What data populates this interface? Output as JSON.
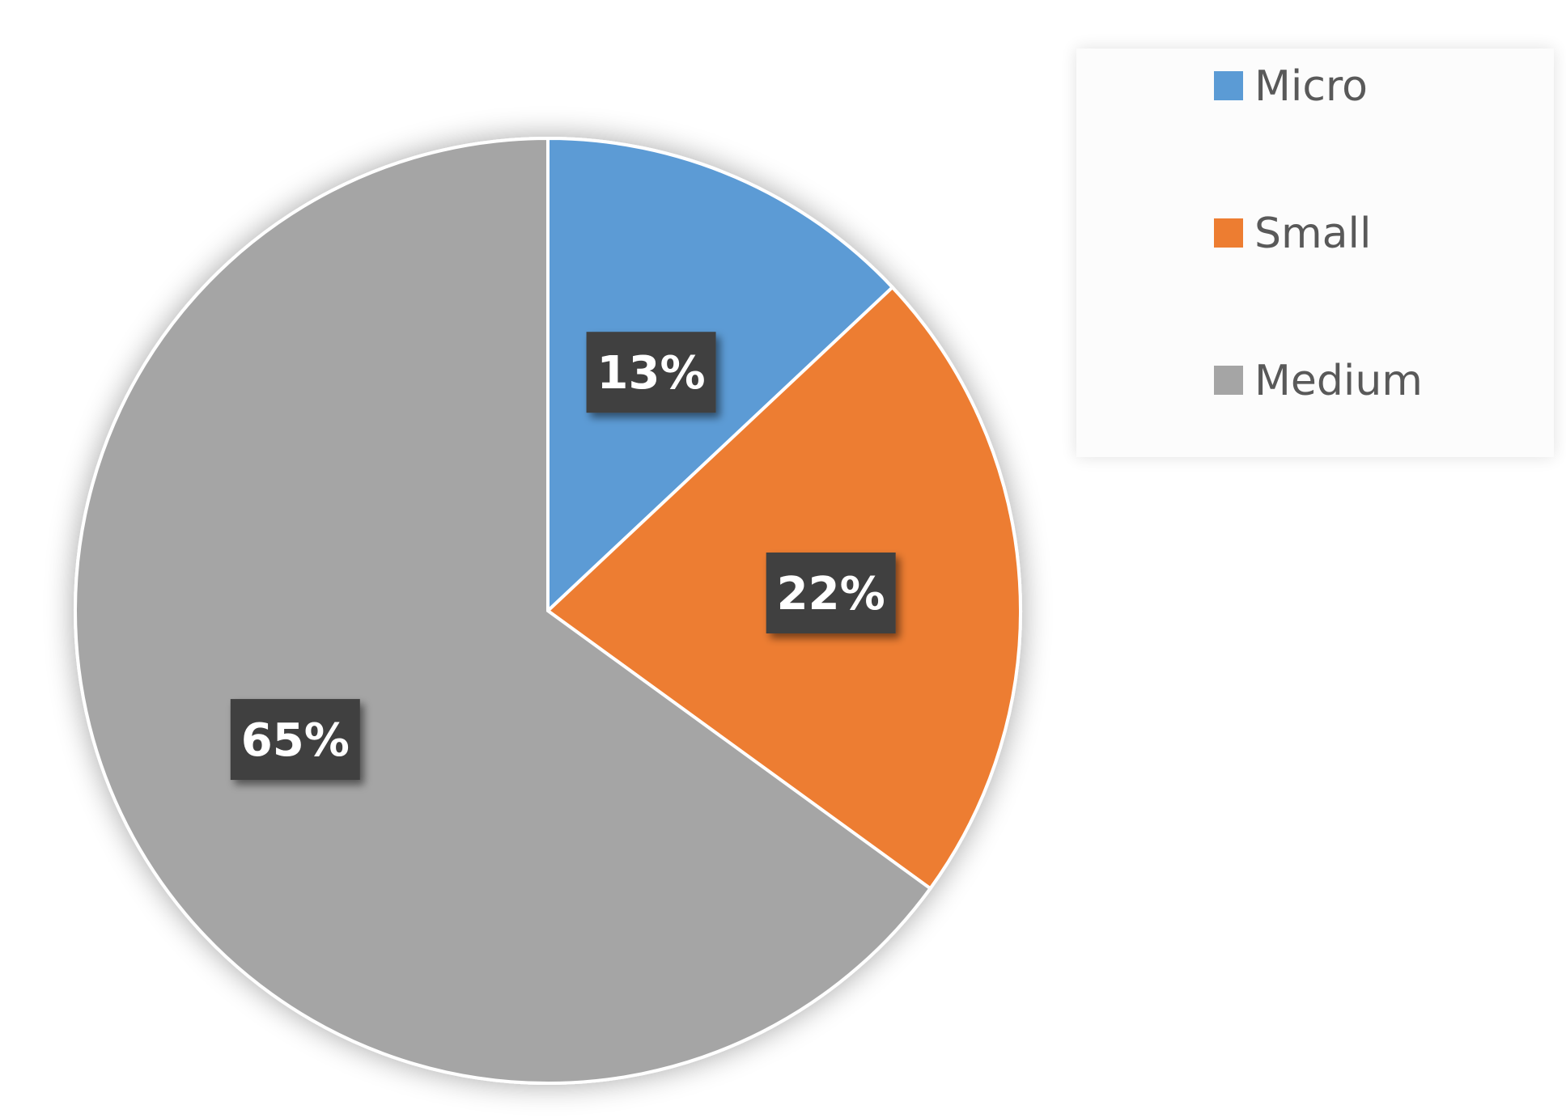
{
  "chart_data": {
    "type": "pie",
    "slices": [
      {
        "label": "Micro",
        "value": 13,
        "display": "13%",
        "color": "#5b9bd5"
      },
      {
        "label": "Small",
        "value": 22,
        "display": "22%",
        "color": "#ed7d31"
      },
      {
        "label": "Medium",
        "value": 65,
        "display": "65%",
        "color": "#a5a5a5"
      }
    ],
    "start_angle_deg": 0,
    "direction": "clockwise",
    "data_label_style": "dark boxed labels with drop shadow",
    "data_label_background": "#404040",
    "data_label_text_color": "#ffffff",
    "legend_position": "top-right",
    "legend_text_color": "#595959"
  }
}
